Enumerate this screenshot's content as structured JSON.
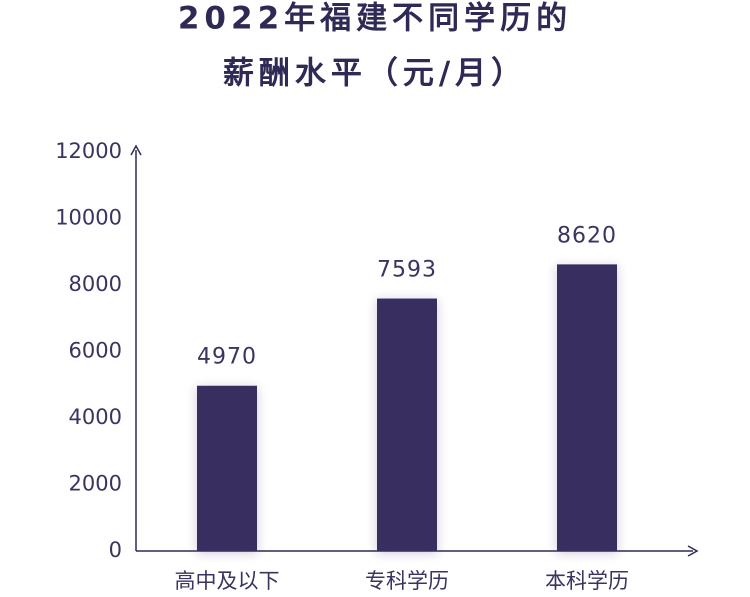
{
  "chart_data": {
    "type": "bar",
    "title": [
      "2022年福建不同学历的",
      "薪酬水平（元/月）"
    ],
    "categories": [
      "高中及以下",
      "专科学历",
      "本科学历"
    ],
    "values": [
      4970,
      7593,
      8620
    ],
    "color": "#372e5f",
    "ylim": [
      0,
      12000
    ],
    "yticks": [
      0,
      2000,
      4000,
      6000,
      8000,
      10000,
      12000
    ],
    "grid": false
  }
}
